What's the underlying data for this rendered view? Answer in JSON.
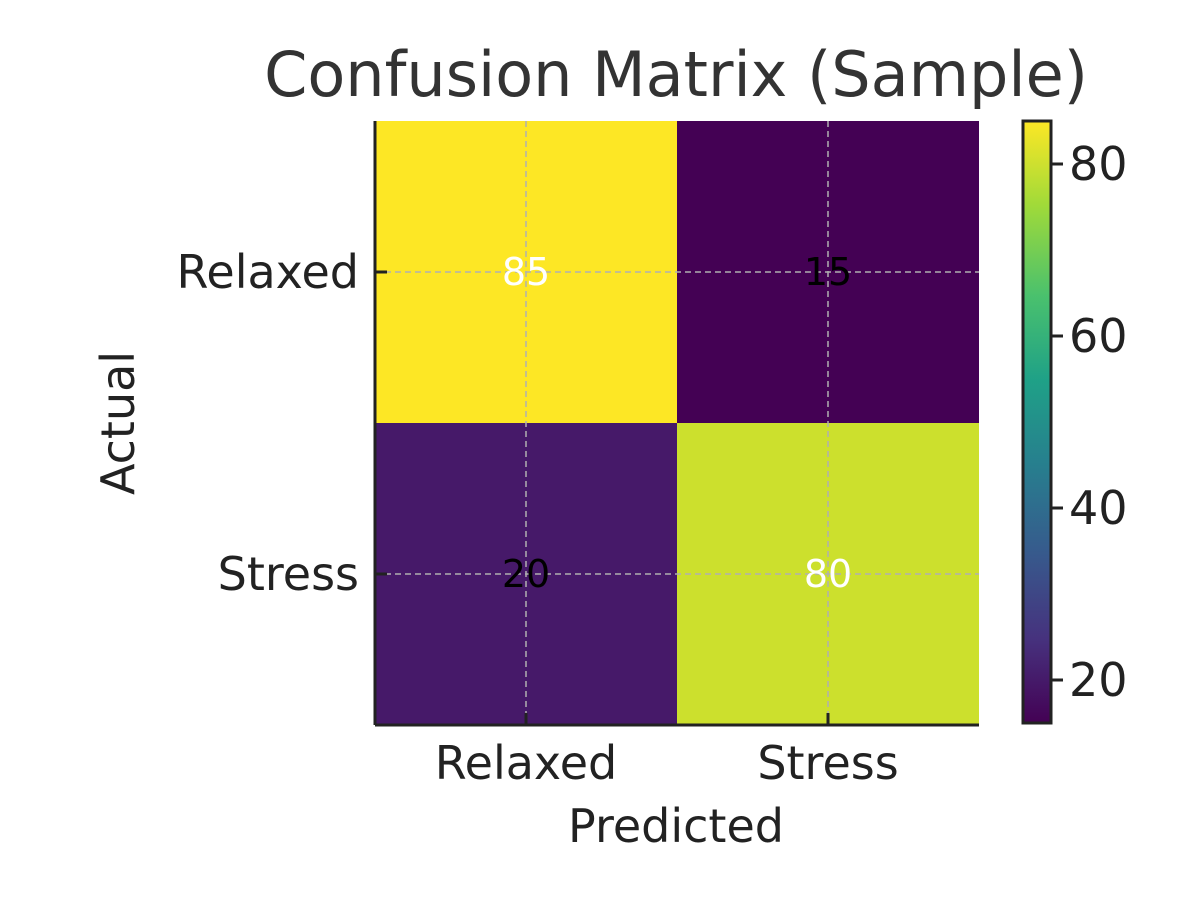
{
  "chart_data": {
    "type": "heatmap",
    "title": "Confusion Matrix (Sample)",
    "xlabel": "Predicted",
    "ylabel": "Actual",
    "x_categories": [
      "Relaxed",
      "Stress"
    ],
    "y_categories": [
      "Relaxed",
      "Stress"
    ],
    "values": [
      [
        85,
        15
      ],
      [
        20,
        80
      ]
    ],
    "value_range": [
      15,
      85
    ],
    "colormap": "viridis",
    "colorbar": {
      "ticks": [
        20,
        40,
        60,
        80
      ],
      "tick_labels": [
        "20",
        "40",
        "60",
        "80"
      ]
    },
    "grid": true,
    "annotation_colors": {
      "on_light_cell": "#ffffff",
      "on_dark_cell": "#000000"
    },
    "colors": {
      "text": "#222222",
      "grid": "#b0b0b0",
      "axis": "#222222"
    }
  }
}
